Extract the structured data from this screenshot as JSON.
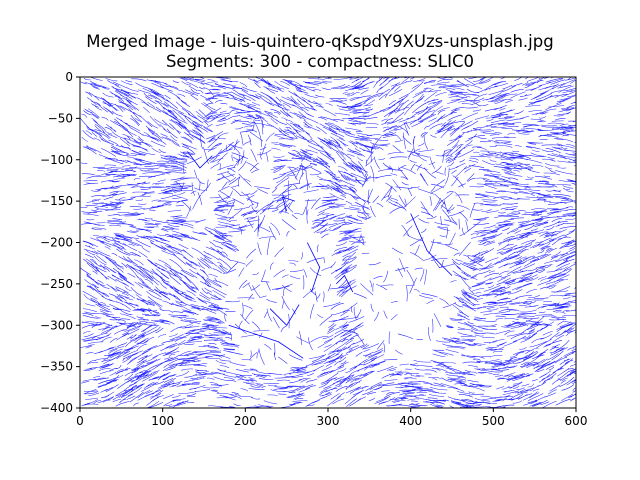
{
  "chart_data": {
    "type": "line",
    "title_line1": "Merged Image - luis-quintero-qKspdY9XUzs-unsplash.jpg",
    "title_line2": "Segments: 300 - compactness: SLIC0",
    "xlabel": "",
    "ylabel": "",
    "xlim": [
      0,
      600
    ],
    "ylim": [
      -400,
      0
    ],
    "x_ticks": [
      0,
      100,
      200,
      300,
      400,
      500,
      600
    ],
    "y_ticks": [
      0,
      -50,
      -100,
      -150,
      -200,
      -250,
      -300,
      -350,
      -400
    ],
    "grid": false,
    "legend": "none",
    "line_color": "#0000ff",
    "series": [
      {
        "values": [
          [
            260,
            -150
          ],
          [
            245,
            -145
          ],
          [
            250,
            -162
          ]
        ]
      },
      {
        "values": [
          [
            275,
            -200
          ],
          [
            290,
            -230
          ],
          [
            280,
            -260
          ]
        ]
      },
      {
        "values": [
          [
            310,
            -250
          ],
          [
            320,
            -240
          ],
          [
            330,
            -260
          ]
        ]
      },
      {
        "values": [
          [
            400,
            -165
          ],
          [
            420,
            -210
          ],
          [
            450,
            -240
          ]
        ]
      },
      {
        "values": [
          [
            180,
            -300
          ],
          [
            240,
            -320
          ],
          [
            270,
            -340
          ]
        ]
      },
      {
        "values": [
          [
            130,
            -90
          ],
          [
            145,
            -110
          ],
          [
            160,
            -95
          ]
        ]
      },
      {
        "values": [
          [
            230,
            -280
          ],
          [
            250,
            -300
          ],
          [
            265,
            -275
          ]
        ]
      }
    ]
  }
}
